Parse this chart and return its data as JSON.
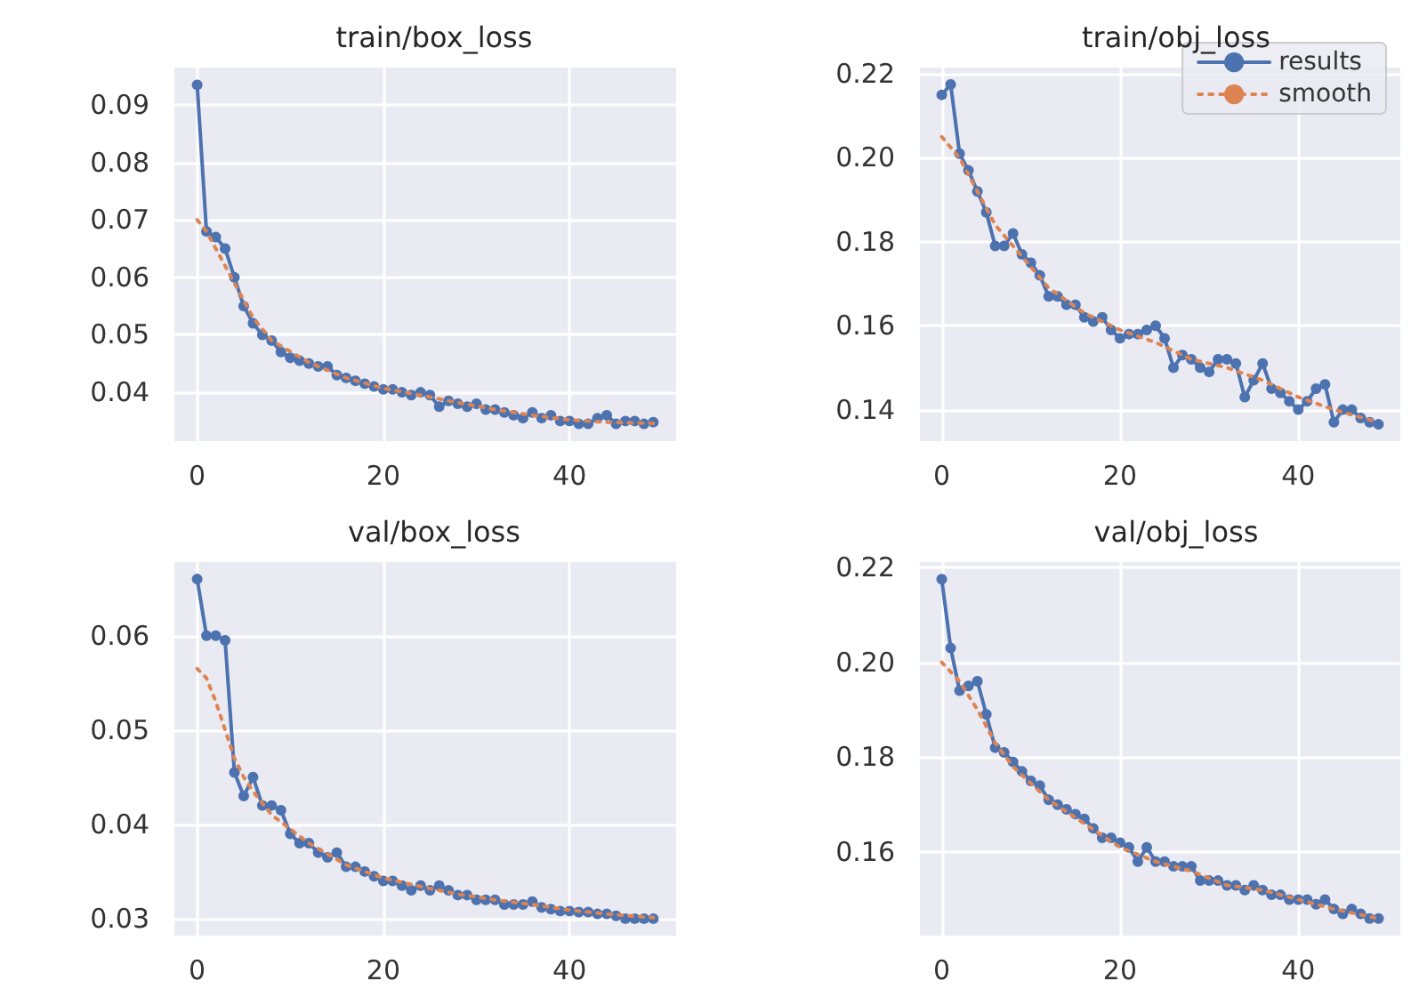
{
  "chart_data": [
    {
      "type": "line",
      "title": "train/box_loss",
      "x": [
        0,
        1,
        2,
        3,
        4,
        5,
        6,
        7,
        8,
        9,
        10,
        11,
        12,
        13,
        14,
        15,
        16,
        17,
        18,
        19,
        20,
        21,
        22,
        23,
        24,
        25,
        26,
        27,
        28,
        29,
        30,
        31,
        32,
        33,
        34,
        35,
        36,
        37,
        38,
        39,
        40,
        41,
        42,
        43,
        44,
        45,
        46,
        47,
        48,
        49
      ],
      "xlim": [
        -2.45,
        51.45
      ],
      "xticks": [
        0,
        20,
        40
      ],
      "ylim": [
        0.0315,
        0.0965
      ],
      "yticks": [
        0.04,
        0.05,
        0.06,
        0.07,
        0.08,
        0.09
      ],
      "grid": true,
      "legend": false,
      "marker": "circle",
      "line_style": "solid",
      "series": [
        {
          "color": "#4c72b0",
          "values": [
            0.0935,
            0.068,
            0.067,
            0.065,
            0.06,
            0.055,
            0.052,
            0.05,
            0.049,
            0.047,
            0.046,
            0.0455,
            0.045,
            0.0445,
            0.0445,
            0.043,
            0.0425,
            0.042,
            0.0415,
            0.041,
            0.0405,
            0.0405,
            0.04,
            0.0395,
            0.04,
            0.0395,
            0.0375,
            0.0385,
            0.038,
            0.0375,
            0.038,
            0.037,
            0.037,
            0.0365,
            0.036,
            0.0355,
            0.0365,
            0.0355,
            0.036,
            0.035,
            0.035,
            0.0345,
            0.0345,
            0.0355,
            0.036,
            0.0345,
            0.035,
            0.035,
            0.0345,
            0.0348
          ]
        },
        {
          "color": "#dd8452",
          "marker": "none",
          "line_style": "dotted",
          "x": [
            0,
            1,
            2,
            3,
            4,
            5,
            6,
            7,
            8,
            12,
            16,
            20,
            24,
            28,
            32,
            36,
            40,
            44,
            49
          ],
          "values": [
            0.07,
            0.068,
            0.065,
            0.062,
            0.059,
            0.056,
            0.053,
            0.051,
            0.049,
            0.0452,
            0.0425,
            0.0407,
            0.0395,
            0.0382,
            0.037,
            0.036,
            0.0352,
            0.0348,
            0.0346
          ]
        }
      ]
    },
    {
      "type": "line",
      "title": "train/obj_loss",
      "x": [
        0,
        1,
        2,
        3,
        4,
        5,
        6,
        7,
        8,
        9,
        10,
        11,
        12,
        13,
        14,
        15,
        16,
        17,
        18,
        19,
        20,
        21,
        22,
        23,
        24,
        25,
        26,
        27,
        28,
        29,
        30,
        31,
        32,
        33,
        34,
        35,
        36,
        37,
        38,
        39,
        40,
        41,
        42,
        43,
        44,
        45,
        46,
        47,
        48,
        49
      ],
      "xlim": [
        -2.45,
        51.45
      ],
      "xticks": [
        0,
        20,
        40
      ],
      "ylim": [
        0.1325,
        0.2215
      ],
      "yticks": [
        {
          "value": 0.14,
          "label": "0.14"
        },
        {
          "value": 0.16,
          "label": "0.16"
        },
        {
          "value": 0.18,
          "label": "0.18"
        },
        {
          "value": 0.2,
          "label": "0.20"
        },
        {
          "value": 0.22,
          "label": "0.22"
        }
      ],
      "grid": true,
      "legend": "top right",
      "marker": "circle",
      "line_style": "solid",
      "series": [
        {
          "name": "results",
          "color": "#4c72b0",
          "values": [
            0.215,
            0.2175,
            0.201,
            0.197,
            0.192,
            0.187,
            0.179,
            0.179,
            0.182,
            0.177,
            0.175,
            0.172,
            0.167,
            0.167,
            0.165,
            0.165,
            0.162,
            0.161,
            0.162,
            0.159,
            0.157,
            0.158,
            0.158,
            0.159,
            0.16,
            0.157,
            0.15,
            0.153,
            0.152,
            0.15,
            0.149,
            0.152,
            0.152,
            0.151,
            0.143,
            0.147,
            0.151,
            0.145,
            0.144,
            0.142,
            0.14,
            0.142,
            0.145,
            0.146,
            0.137,
            0.14,
            0.14,
            0.138,
            0.137,
            0.1365
          ]
        },
        {
          "name": "smooth",
          "color": "#dd8452",
          "marker": "none",
          "line_style": "dotted",
          "x": [
            0,
            2,
            4,
            6,
            8,
            12,
            16,
            20,
            24,
            28,
            32,
            36,
            40,
            44,
            49
          ],
          "values": [
            0.205,
            0.2,
            0.192,
            0.184,
            0.179,
            0.169,
            0.163,
            0.159,
            0.156,
            0.152,
            0.15,
            0.147,
            0.143,
            0.14,
            0.137
          ]
        }
      ]
    },
    {
      "type": "line",
      "title": "val/box_loss",
      "x": [
        0,
        1,
        2,
        3,
        4,
        5,
        6,
        7,
        8,
        9,
        10,
        11,
        12,
        13,
        14,
        15,
        16,
        17,
        18,
        19,
        20,
        21,
        22,
        23,
        24,
        25,
        26,
        27,
        28,
        29,
        30,
        31,
        32,
        33,
        34,
        35,
        36,
        37,
        38,
        39,
        40,
        41,
        42,
        43,
        44,
        45,
        46,
        47,
        48,
        49
      ],
      "xlim": [
        -2.45,
        51.45
      ],
      "xticks": [
        0,
        20,
        40
      ],
      "ylim": [
        0.0282,
        0.0678
      ],
      "yticks": [
        0.03,
        0.04,
        0.05,
        0.06
      ],
      "grid": true,
      "legend": false,
      "marker": "circle",
      "line_style": "solid",
      "series": [
        {
          "color": "#4c72b0",
          "values": [
            0.066,
            0.06,
            0.06,
            0.0595,
            0.0455,
            0.043,
            0.045,
            0.042,
            0.042,
            0.0415,
            0.039,
            0.038,
            0.038,
            0.037,
            0.0365,
            0.037,
            0.0355,
            0.0355,
            0.035,
            0.0345,
            0.034,
            0.034,
            0.0335,
            0.033,
            0.0335,
            0.033,
            0.0335,
            0.033,
            0.0325,
            0.0325,
            0.032,
            0.032,
            0.032,
            0.0315,
            0.0315,
            0.0315,
            0.0318,
            0.0312,
            0.031,
            0.0308,
            0.0308,
            0.0307,
            0.0307,
            0.0305,
            0.0305,
            0.0303,
            0.03,
            0.03,
            0.03,
            0.03
          ]
        },
        {
          "color": "#dd8452",
          "marker": "none",
          "line_style": "dotted",
          "x": [
            0,
            1,
            2,
            3,
            4,
            5,
            6,
            8,
            12,
            16,
            20,
            24,
            28,
            32,
            36,
            40,
            44,
            49
          ],
          "values": [
            0.0565,
            0.0555,
            0.053,
            0.05,
            0.047,
            0.045,
            0.0435,
            0.041,
            0.038,
            0.0357,
            0.0343,
            0.0334,
            0.0326,
            0.032,
            0.0315,
            0.0309,
            0.0305,
            0.0301
          ]
        }
      ]
    },
    {
      "type": "line",
      "title": "val/obj_loss",
      "x": [
        0,
        1,
        2,
        3,
        4,
        5,
        6,
        7,
        8,
        9,
        10,
        11,
        12,
        13,
        14,
        15,
        16,
        17,
        18,
        19,
        20,
        21,
        22,
        23,
        24,
        25,
        26,
        27,
        28,
        29,
        30,
        31,
        32,
        33,
        34,
        35,
        36,
        37,
        38,
        39,
        40,
        41,
        42,
        43,
        44,
        45,
        46,
        47,
        48,
        49
      ],
      "xlim": [
        -2.45,
        51.45
      ],
      "xticks": [
        0,
        20,
        40
      ],
      "ylim": [
        0.1424,
        0.2211
      ],
      "yticks": [
        {
          "value": 0.16,
          "label": "0.16"
        },
        {
          "value": 0.18,
          "label": "0.18"
        },
        {
          "value": 0.2,
          "label": "0.20"
        },
        {
          "value": 0.22,
          "label": "0.22"
        }
      ],
      "grid": true,
      "legend": false,
      "marker": "circle",
      "line_style": "solid",
      "series": [
        {
          "color": "#4c72b0",
          "values": [
            0.2175,
            0.203,
            0.194,
            0.195,
            0.196,
            0.189,
            0.182,
            0.181,
            0.179,
            0.177,
            0.175,
            0.174,
            0.171,
            0.17,
            0.169,
            0.168,
            0.167,
            0.165,
            0.163,
            0.163,
            0.162,
            0.161,
            0.158,
            0.161,
            0.158,
            0.158,
            0.157,
            0.157,
            0.157,
            0.154,
            0.154,
            0.154,
            0.153,
            0.153,
            0.152,
            0.153,
            0.152,
            0.151,
            0.151,
            0.15,
            0.15,
            0.15,
            0.149,
            0.15,
            0.148,
            0.147,
            0.148,
            0.147,
            0.146,
            0.146
          ]
        },
        {
          "color": "#dd8452",
          "marker": "none",
          "line_style": "dotted",
          "x": [
            0,
            2,
            4,
            6,
            8,
            12,
            16,
            20,
            24,
            28,
            32,
            36,
            40,
            44,
            49
          ],
          "values": [
            0.2,
            0.196,
            0.19,
            0.183,
            0.178,
            0.171,
            0.166,
            0.161,
            0.158,
            0.156,
            0.153,
            0.152,
            0.15,
            0.148,
            0.146
          ]
        }
      ]
    }
  ]
}
